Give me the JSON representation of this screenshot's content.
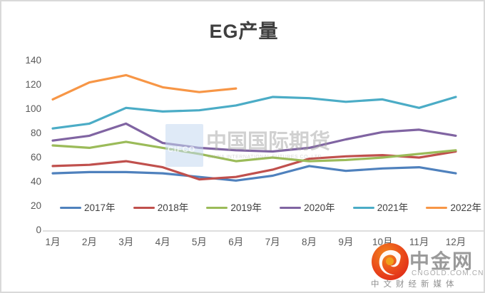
{
  "title": "EG产量",
  "watermark": {
    "badge_text": "CIFCO",
    "main_text": "中国国际期货",
    "sub_text": "CHINA INTERNATIONAL FUTURES CO.,LTD"
  },
  "logo": {
    "name": "中金网",
    "domain": "CNGOLD.COM.CN",
    "tagline": "中文财经新媒体"
  },
  "chart_data": {
    "type": "line",
    "title": "EG产量",
    "categories": [
      "1月",
      "2月",
      "3月",
      "4月",
      "5月",
      "6月",
      "7月",
      "8月",
      "9月",
      "10月",
      "11月",
      "12月"
    ],
    "y_ticks": [
      0,
      20,
      40,
      60,
      80,
      100,
      120,
      140
    ],
    "ylim": [
      0,
      140
    ],
    "grid": false,
    "legend_position": "bottom",
    "series": [
      {
        "name": "2017年",
        "color": "#4F81BD",
        "values": [
          47,
          48,
          48,
          47,
          44,
          41,
          45,
          53,
          49,
          51,
          52,
          47
        ]
      },
      {
        "name": "2018年",
        "color": "#C0504D",
        "values": [
          53,
          54,
          57,
          52,
          42,
          44,
          50,
          59,
          61,
          62,
          60,
          65
        ]
      },
      {
        "name": "2019年",
        "color": "#9BBB59",
        "values": [
          70,
          68,
          73,
          68,
          63,
          57,
          60,
          57,
          58,
          60,
          63,
          66
        ]
      },
      {
        "name": "2020年",
        "color": "#8064A2",
        "values": [
          74,
          78,
          88,
          72,
          68,
          66,
          65,
          68,
          75,
          81,
          83,
          78
        ]
      },
      {
        "name": "2021年",
        "color": "#4BACC6",
        "values": [
          84,
          88,
          101,
          98,
          99,
          103,
          110,
          109,
          106,
          108,
          101,
          110
        ]
      },
      {
        "name": "2022年",
        "color": "#F79646",
        "values": [
          108,
          122,
          128,
          118,
          114,
          117,
          null,
          null,
          null,
          null,
          null,
          null
        ]
      }
    ]
  }
}
